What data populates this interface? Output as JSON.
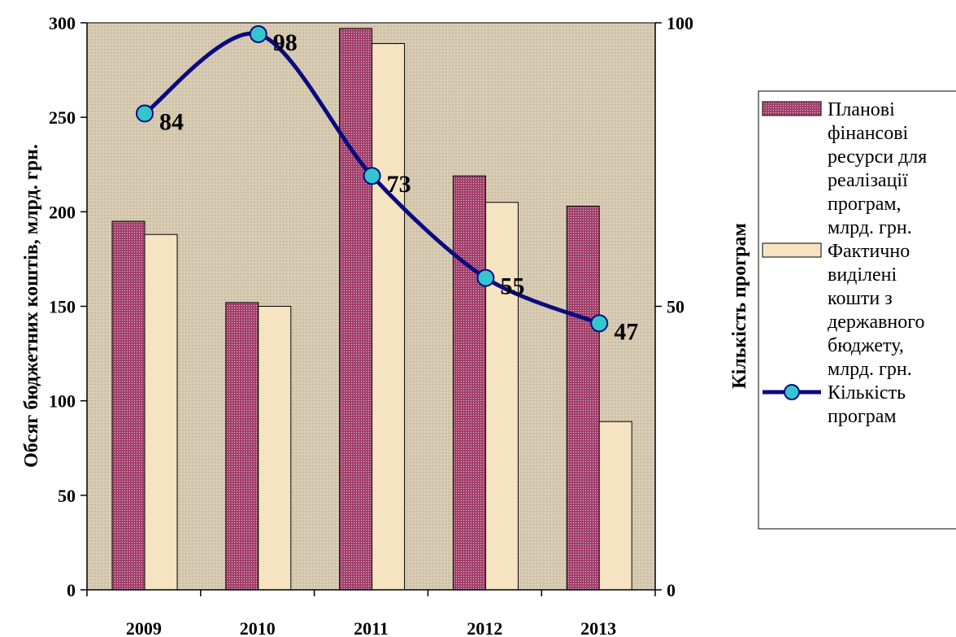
{
  "chart_data": {
    "type": "bar",
    "categories": [
      "2009",
      "2010",
      "2011",
      "2012",
      "2013"
    ],
    "series": [
      {
        "name": "Планові фінансові ресурси для реалізації програм, млрд. грн.",
        "type": "bar",
        "axis": "left",
        "values": [
          195,
          152,
          297,
          219,
          203
        ],
        "color": "#a0406a"
      },
      {
        "name": "Фактично виділені кошти з державного бюджету, млрд. грн.",
        "type": "bar",
        "axis": "left",
        "values": [
          188,
          150,
          289,
          205,
          89
        ],
        "color": "#f5e3c2"
      },
      {
        "name": "Кількість програм",
        "type": "line",
        "axis": "right",
        "values": [
          84,
          98,
          73,
          55,
          47
        ],
        "color": "#0a0a80",
        "marker_color": "#33c6cc"
      }
    ],
    "data_labels": [
      "84",
      "98",
      "73",
      "55",
      "47"
    ],
    "ylabel": "Обсяг бюджетних коштів, млрд. грн.",
    "ylabel_right": "Кількість програм",
    "ylim": [
      0,
      300
    ],
    "ylim_right": [
      0,
      100
    ],
    "yticks": [
      "0",
      "50",
      "100",
      "150",
      "200",
      "250",
      "300"
    ],
    "yticks_right": [
      "0",
      "50",
      "100"
    ],
    "legend": {
      "placement": "right",
      "entries": [
        [
          "Планові",
          "фінансові",
          "ресурси для",
          "реалізації",
          "програм,",
          "млрд. грн."
        ],
        [
          "Фактично",
          "виділені",
          "кошти з",
          "державного",
          "бюджету,",
          "млрд. грн."
        ],
        [
          "Кількість",
          "програм"
        ]
      ]
    },
    "plot_background": "#d8ccb4",
    "grid": false
  }
}
